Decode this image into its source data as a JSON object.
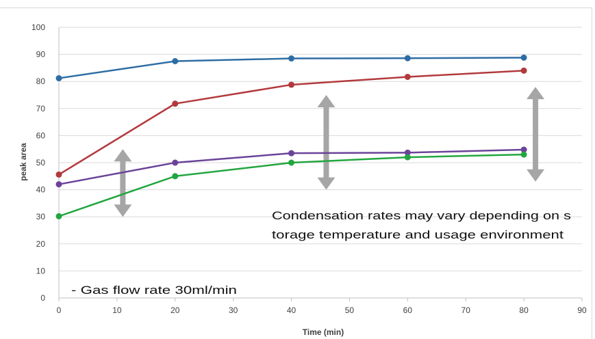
{
  "chart_data": {
    "type": "line",
    "title": "",
    "xlabel": "Time (min)",
    "ylabel": "peak area",
    "xlim": [
      0,
      90
    ],
    "ylim": [
      0,
      100
    ],
    "x_ticks": [
      0,
      10,
      20,
      30,
      40,
      50,
      60,
      70,
      80,
      90
    ],
    "y_ticks": [
      0,
      10,
      20,
      30,
      40,
      50,
      60,
      70,
      80,
      90,
      100
    ],
    "grid": "horizontal",
    "legend": "none",
    "x": [
      0,
      20,
      40,
      60,
      80
    ],
    "series": [
      {
        "color": "#2E6DA4",
        "values": [
          81.2,
          87.5,
          88.5,
          88.6,
          88.8
        ]
      },
      {
        "color": "#B3393D",
        "values": [
          45.6,
          71.8,
          78.8,
          81.7,
          84.0
        ]
      },
      {
        "color": "#6A4399",
        "values": [
          42.0,
          50.0,
          53.5,
          53.7,
          54.8
        ]
      },
      {
        "color": "#22A63F",
        "values": [
          30.2,
          45.0,
          50.0,
          52.0,
          53.0
        ]
      }
    ],
    "range_arrows": [
      {
        "x": 11,
        "y_from": 30,
        "y_to": 55
      },
      {
        "x": 46,
        "y_from": 40,
        "y_to": 75
      },
      {
        "x": 82,
        "y_from": 43,
        "y_to": 78
      }
    ],
    "annotations": {
      "note_line1": "Condensation rates may vary depending on  s",
      "note_line2": "torage temperature and usage environment",
      "flow_note": "-   Gas flow rate 30ml/min"
    },
    "colors": {
      "grid": "#d9d9d9",
      "axis": "#bfbfbf",
      "arrow": "#a6a6a6"
    }
  }
}
